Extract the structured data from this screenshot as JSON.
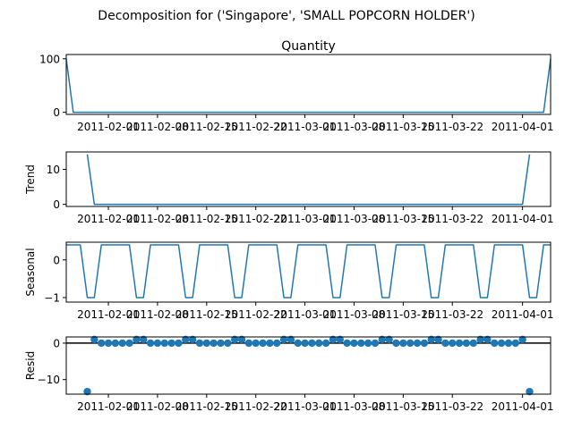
{
  "chart_data": {
    "title": "Decomposition for ('Singapore', 'SMALL POPCORN HOLDER')",
    "type": "line",
    "x": [
      "2011-01-26",
      "2011-01-27",
      "2011-01-28",
      "2011-01-29",
      "2011-01-30",
      "2011-01-31",
      "2011-02-01",
      "2011-02-02",
      "2011-02-03",
      "2011-02-04",
      "2011-02-05",
      "2011-02-06",
      "2011-02-07",
      "2011-02-08",
      "2011-02-09",
      "2011-02-10",
      "2011-02-11",
      "2011-02-12",
      "2011-02-13",
      "2011-02-14",
      "2011-02-15",
      "2011-02-16",
      "2011-02-17",
      "2011-02-18",
      "2011-02-19",
      "2011-02-20",
      "2011-02-21",
      "2011-02-22",
      "2011-02-23",
      "2011-02-24",
      "2011-02-25",
      "2011-02-26",
      "2011-02-27",
      "2011-02-28",
      "2011-03-01",
      "2011-03-02",
      "2011-03-03",
      "2011-03-04",
      "2011-03-05",
      "2011-03-06",
      "2011-03-07",
      "2011-03-08",
      "2011-03-09",
      "2011-03-10",
      "2011-03-11",
      "2011-03-12",
      "2011-03-13",
      "2011-03-14",
      "2011-03-15",
      "2011-03-16",
      "2011-03-17",
      "2011-03-18",
      "2011-03-19",
      "2011-03-20",
      "2011-03-21",
      "2011-03-22",
      "2011-03-23",
      "2011-03-24",
      "2011-03-25",
      "2011-03-26",
      "2011-03-27",
      "2011-03-28",
      "2011-03-29",
      "2011-03-30",
      "2011-03-31",
      "2011-04-01",
      "2011-04-02",
      "2011-04-03",
      "2011-04-04",
      "2011-04-05"
    ],
    "xticks": [
      {
        "date": "2011-02-01",
        "label": "2011-02-01"
      },
      {
        "date": "2011-02-08",
        "label": "2011-02-08"
      },
      {
        "date": "2011-02-15",
        "label": "2011-02-15"
      },
      {
        "date": "2011-02-22",
        "label": "2011-02-22"
      },
      {
        "date": "2011-03-01",
        "label": "2011-03-01"
      },
      {
        "date": "2011-03-08",
        "label": "2011-03-08"
      },
      {
        "date": "2011-03-15",
        "label": "2011-03-15"
      },
      {
        "date": "2011-03-22",
        "label": "2011-03-22"
      },
      {
        "date": "2011-04-01",
        "label": "2011-04-01"
      }
    ],
    "panels": [
      {
        "title": "Quantity",
        "ylabel": "",
        "kind": "line",
        "ylim": [
          -4,
          108
        ],
        "yticks": [
          {
            "v": 0,
            "label": "0"
          },
          {
            "v": 100,
            "label": "100"
          }
        ],
        "values": [
          100,
          0,
          0,
          0,
          0,
          0,
          0,
          0,
          0,
          0,
          0,
          0,
          0,
          0,
          0,
          0,
          0,
          0,
          0,
          0,
          0,
          0,
          0,
          0,
          0,
          0,
          0,
          0,
          0,
          0,
          0,
          0,
          0,
          0,
          0,
          0,
          0,
          0,
          0,
          0,
          0,
          0,
          0,
          0,
          0,
          0,
          0,
          0,
          0,
          0,
          0,
          0,
          0,
          0,
          0,
          0,
          0,
          0,
          0,
          0,
          0,
          0,
          0,
          0,
          0,
          0,
          0,
          0,
          0,
          100
        ]
      },
      {
        "title": "",
        "ylabel": "Trend",
        "kind": "line",
        "ylim": [
          -0.6,
          15
        ],
        "yticks": [
          {
            "v": 0,
            "label": "0"
          },
          {
            "v": 10,
            "label": "10"
          }
        ],
        "values": [
          null,
          null,
          null,
          14.29,
          0,
          0,
          0,
          0,
          0,
          0,
          0,
          0,
          0,
          0,
          0,
          0,
          0,
          0,
          0,
          0,
          0,
          0,
          0,
          0,
          0,
          0,
          0,
          0,
          0,
          0,
          0,
          0,
          0,
          0,
          0,
          0,
          0,
          0,
          0,
          0,
          0,
          0,
          0,
          0,
          0,
          0,
          0,
          0,
          0,
          0,
          0,
          0,
          0,
          0,
          0,
          0,
          0,
          0,
          0,
          0,
          0,
          0,
          0,
          0,
          0,
          0,
          14.29,
          null,
          null,
          null
        ]
      },
      {
        "title": "",
        "ylabel": "Seasonal",
        "kind": "line",
        "ylim": [
          -1.12,
          0.47
        ],
        "yticks": [
          {
            "v": 0,
            "label": "0"
          },
          {
            "v": -1,
            "label": "−1"
          }
        ],
        "values": [
          0.4,
          0.4,
          0.4,
          -1.0,
          -1.0,
          0.4,
          0.4,
          0.4,
          0.4,
          0.4,
          -1.0,
          -1.0,
          0.4,
          0.4,
          0.4,
          0.4,
          0.4,
          -1.0,
          -1.0,
          0.4,
          0.4,
          0.4,
          0.4,
          0.4,
          -1.0,
          -1.0,
          0.4,
          0.4,
          0.4,
          0.4,
          0.4,
          -1.0,
          -1.0,
          0.4,
          0.4,
          0.4,
          0.4,
          0.4,
          -1.0,
          -1.0,
          0.4,
          0.4,
          0.4,
          0.4,
          0.4,
          -1.0,
          -1.0,
          0.4,
          0.4,
          0.4,
          0.4,
          0.4,
          -1.0,
          -1.0,
          0.4,
          0.4,
          0.4,
          0.4,
          0.4,
          -1.0,
          -1.0,
          0.4,
          0.4,
          0.4,
          0.4,
          0.4,
          -1.0,
          -1.0,
          0.4,
          0.4
        ]
      },
      {
        "title": "",
        "ylabel": "Resid",
        "kind": "scatter",
        "baseline": 0,
        "ylim": [
          -14,
          1.7
        ],
        "yticks": [
          {
            "v": 0,
            "label": "0"
          },
          {
            "v": -10,
            "label": "−10"
          }
        ],
        "values": [
          null,
          null,
          null,
          -13.3,
          1.0,
          0,
          0,
          0,
          0,
          0,
          1.0,
          1.0,
          0,
          0,
          0,
          0,
          0,
          1.0,
          1.0,
          0,
          0,
          0,
          0,
          0,
          1.0,
          1.0,
          0,
          0,
          0,
          0,
          0,
          1.0,
          1.0,
          0,
          0,
          0,
          0,
          0,
          1.0,
          1.0,
          0,
          0,
          0,
          0,
          0,
          1.0,
          1.0,
          0,
          0,
          0,
          0,
          0,
          1.0,
          1.0,
          0,
          0,
          0,
          0,
          0,
          1.0,
          1.0,
          0,
          0,
          0,
          0,
          1.0,
          -13.3,
          null,
          null,
          null
        ]
      }
    ]
  },
  "colors": {
    "series": "#1f77b4",
    "axis": "#000000"
  }
}
